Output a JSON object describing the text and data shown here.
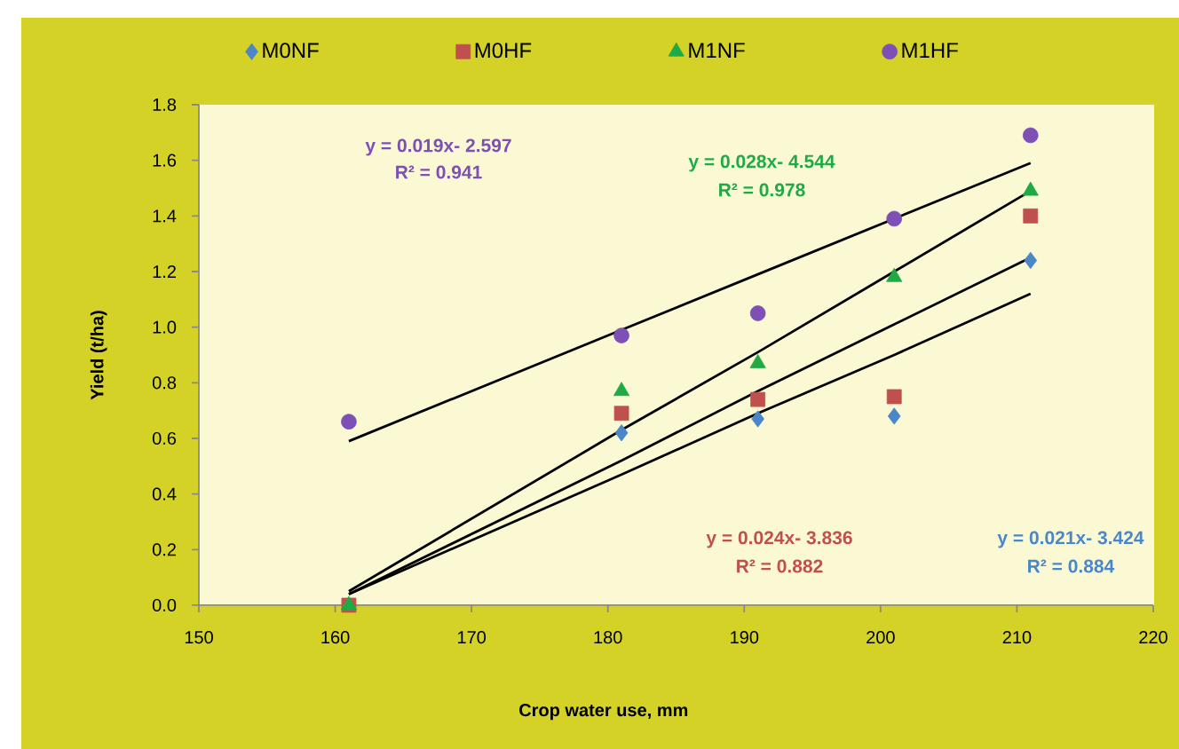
{
  "chart_data": {
    "type": "scatter",
    "xlabel": "Crop water use, mm",
    "ylabel": "Yield (t/ha)",
    "x": [
      161,
      181,
      191,
      201,
      211
    ],
    "series": [
      {
        "name": "M0NF",
        "color": "#4A86C8",
        "marker": "diamond",
        "values": [
          null,
          0.62,
          0.67,
          0.68,
          1.24
        ]
      },
      {
        "name": "M0HF",
        "color": "#C0504D",
        "marker": "square",
        "values": [
          0,
          0.69,
          0.74,
          0.75,
          1.4
        ]
      },
      {
        "name": "M1NF",
        "color": "#1FAA45",
        "marker": "triangle",
        "values": [
          0,
          0.77,
          0.87,
          1.18,
          1.49
        ]
      },
      {
        "name": "M1HF",
        "color": "#7E4FB5",
        "marker": "circle",
        "values": [
          0.66,
          0.97,
          1.05,
          1.39,
          1.69
        ]
      },
      {
        "type": "line",
        "color": "#000000",
        "marker": "none",
        "line_style": "solid",
        "values": [
          0.04,
          0.47,
          0.69,
          0.9,
          1.12
        ]
      },
      {
        "type": "line",
        "color": "#000000",
        "marker": "none",
        "line_style": "solid",
        "values": [
          0.04,
          0.52,
          0.77,
          1.01,
          1.25
        ]
      },
      {
        "type": "line",
        "color": "#000000",
        "marker": "none",
        "line_style": "solid",
        "values": [
          0.05,
          0.63,
          0.91,
          1.2,
          1.49
        ]
      },
      {
        "type": "line",
        "color": "#000000",
        "marker": "none",
        "line_style": "solid",
        "values": [
          0.59,
          0.99,
          1.19,
          1.39,
          1.59
        ]
      }
    ],
    "xlim": [
      150,
      220
    ],
    "xticks": [
      150,
      160,
      170,
      180,
      190,
      200,
      210,
      220
    ],
    "ylim": [
      0,
      1.8
    ],
    "yticks": [
      {
        "value": 0,
        "label": "0.0"
      },
      0.2,
      0.4,
      0.6,
      0.8,
      {
        "value": 1,
        "label": "1.0"
      },
      1.2,
      1.4,
      1.6,
      1.8
    ],
    "legend": "top",
    "annotations": [
      "y = 0.021x- 3.424",
      "R² = 0.884",
      "y = 0.024x- 3.836",
      "R² = 0.882",
      "y = 0.028x- 4.544",
      "R² = 0.978",
      "y = 0.019x- 2.597",
      "R² = 0.941"
    ]
  }
}
